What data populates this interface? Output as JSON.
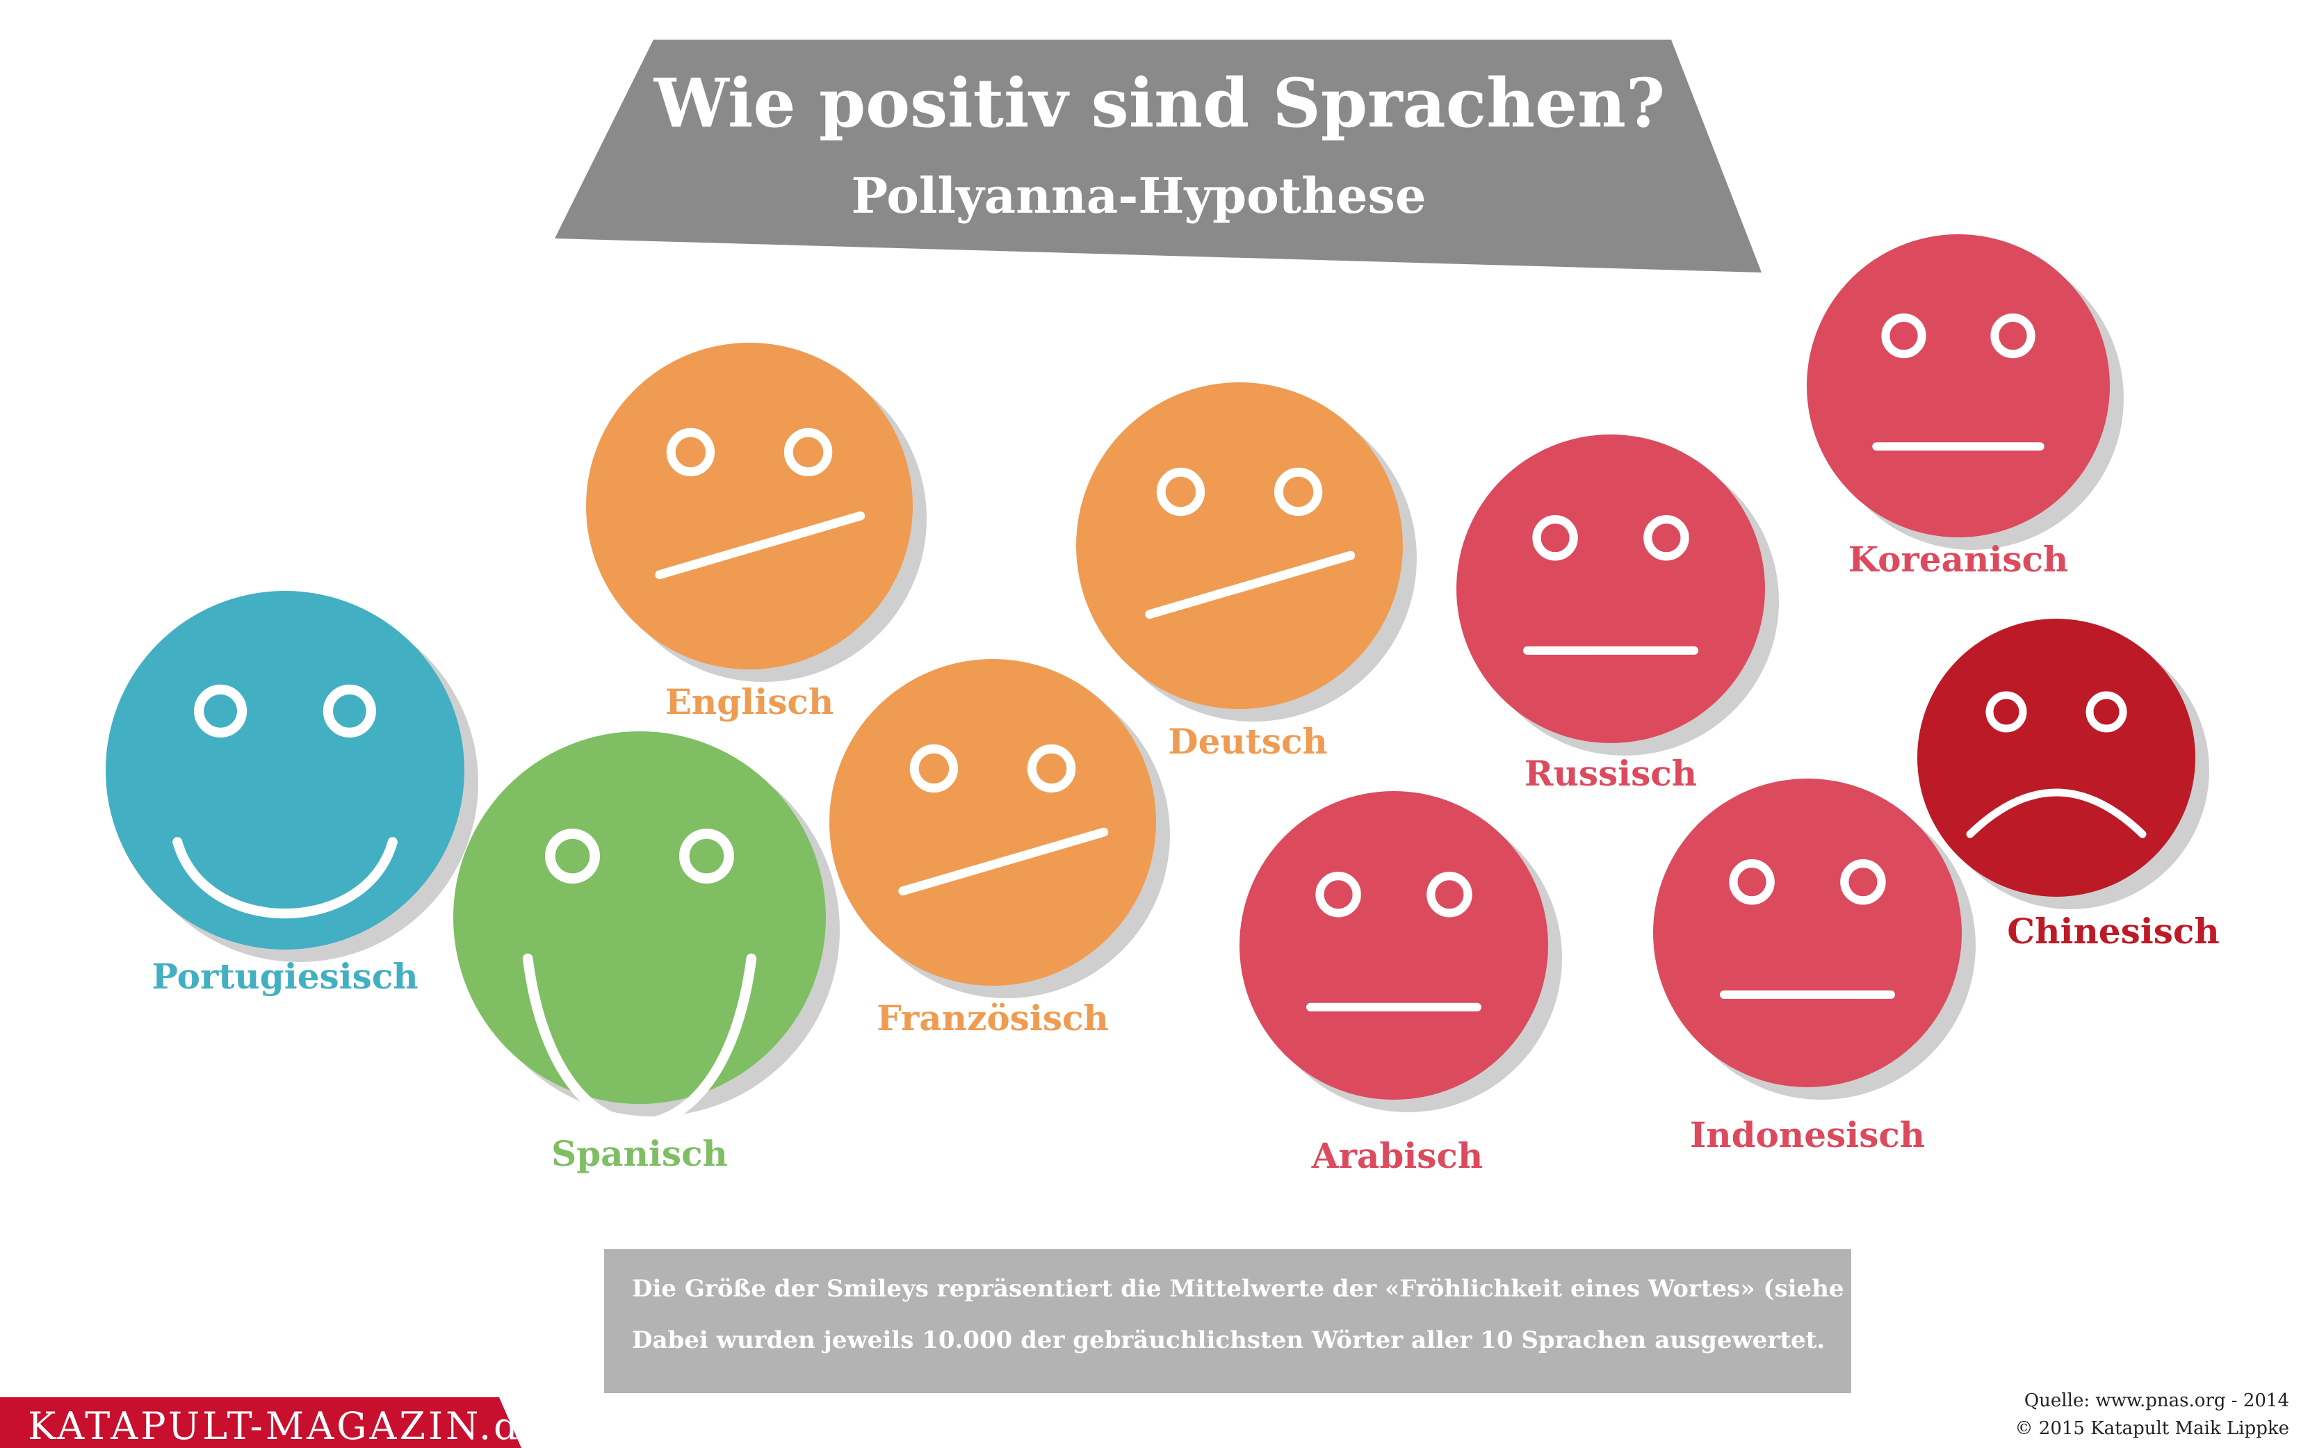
{
  "title": "Wie positiv sind Sprachen?",
  "subtitle": "Pollyanna-Hypothese",
  "colors": {
    "blue": "#42afc3",
    "green": "#7fbe63",
    "orange": "#f09b52",
    "pink": "#dc4a5e",
    "darkred": "#bd1a27",
    "banner": "#8a8a8a",
    "note": "#b3b3b3",
    "brand": "#c8102e",
    "shadow": "#cfcfcf"
  },
  "languages": [
    {
      "name": "Portugiesisch",
      "mood": "big-smile",
      "color": "blue"
    },
    {
      "name": "Spanisch",
      "mood": "big-smile",
      "color": "green"
    },
    {
      "name": "Englisch",
      "mood": "neutral-tilted",
      "color": "orange"
    },
    {
      "name": "Französisch",
      "mood": "neutral-tilted",
      "color": "orange"
    },
    {
      "name": "Deutsch",
      "mood": "neutral-tilted",
      "color": "orange"
    },
    {
      "name": "Russisch",
      "mood": "neutral",
      "color": "pink"
    },
    {
      "name": "Arabisch",
      "mood": "neutral",
      "color": "pink"
    },
    {
      "name": "Indonesisch",
      "mood": "neutral",
      "color": "pink"
    },
    {
      "name": "Koreanisch",
      "mood": "neutral",
      "color": "pink"
    },
    {
      "name": "Chinesisch",
      "mood": "frown",
      "color": "darkred"
    }
  ],
  "note": {
    "line1": "Die Größe der Smileys repräsentiert die Mittelwerte der «Fröhlichkeit eines Wortes» (siehe Quelle).",
    "line2": "Dabei wurden jeweils 10.000 der gebräuchlichsten Wörter aller 10 Sprachen ausgewertet."
  },
  "source": {
    "line1": "Quelle: www.pnas.org - 2014",
    "line2": "© 2015 Katapult Maik Lippke"
  },
  "brand": "KATAPULT-MAGAZIN.de"
}
